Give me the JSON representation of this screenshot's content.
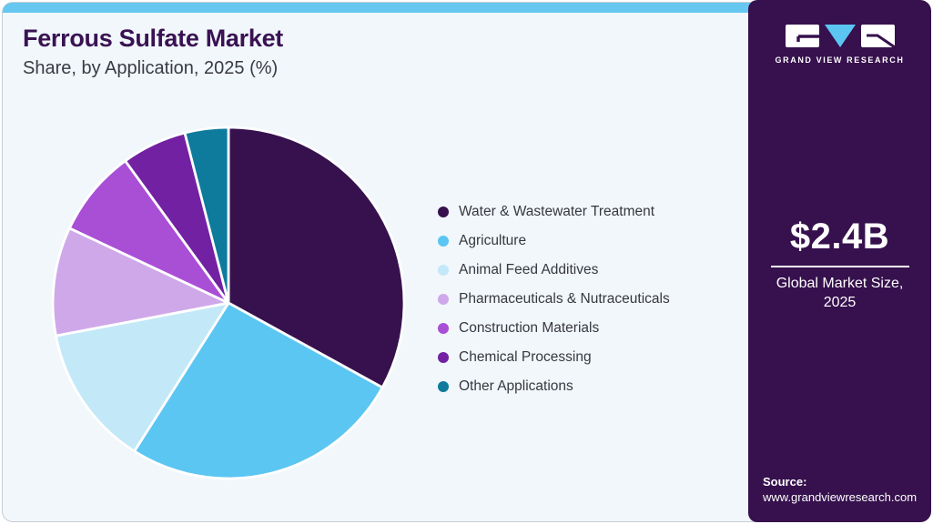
{
  "header": {
    "title": "Ferrous Sulfate Market",
    "subtitle": "Share, by Application, 2025 (%)"
  },
  "chart_data": {
    "type": "pie",
    "title": "Ferrous Sulfate Market Share, by Application, 2025 (%)",
    "unit": "%",
    "legend_position": "right",
    "start_angle_deg": 0,
    "direction": "clockwise",
    "categories": [
      "Water & Wastewater Treatment",
      "Agriculture",
      "Animal Feed Additives",
      "Pharmaceuticals & Nutraceuticals",
      "Construction Materials",
      "Chemical Processing",
      "Other Applications"
    ],
    "values": [
      33,
      26,
      13,
      10,
      8,
      6,
      4
    ],
    "colors": [
      "#36114D",
      "#5BC6F2",
      "#C3E8F8",
      "#CFA8EA",
      "#A94FD6",
      "#7221A2",
      "#0E7B9C"
    ]
  },
  "sidebar": {
    "logo_text": "GRAND VIEW RESEARCH",
    "market_size": "$2.4B",
    "market_label_line1": "Global Market Size,",
    "market_label_line2": "2025",
    "source_label": "Source:",
    "source_url": "www.grandviewresearch.com"
  },
  "theme": {
    "topbar_color": "#66C7F0",
    "card_bg": "#F1F7FB",
    "sidebar_bg": "#36114D",
    "title_color": "#3A1253",
    "text_color": "#3A3A42",
    "logo_triangle_color": "#5BC6F2"
  }
}
